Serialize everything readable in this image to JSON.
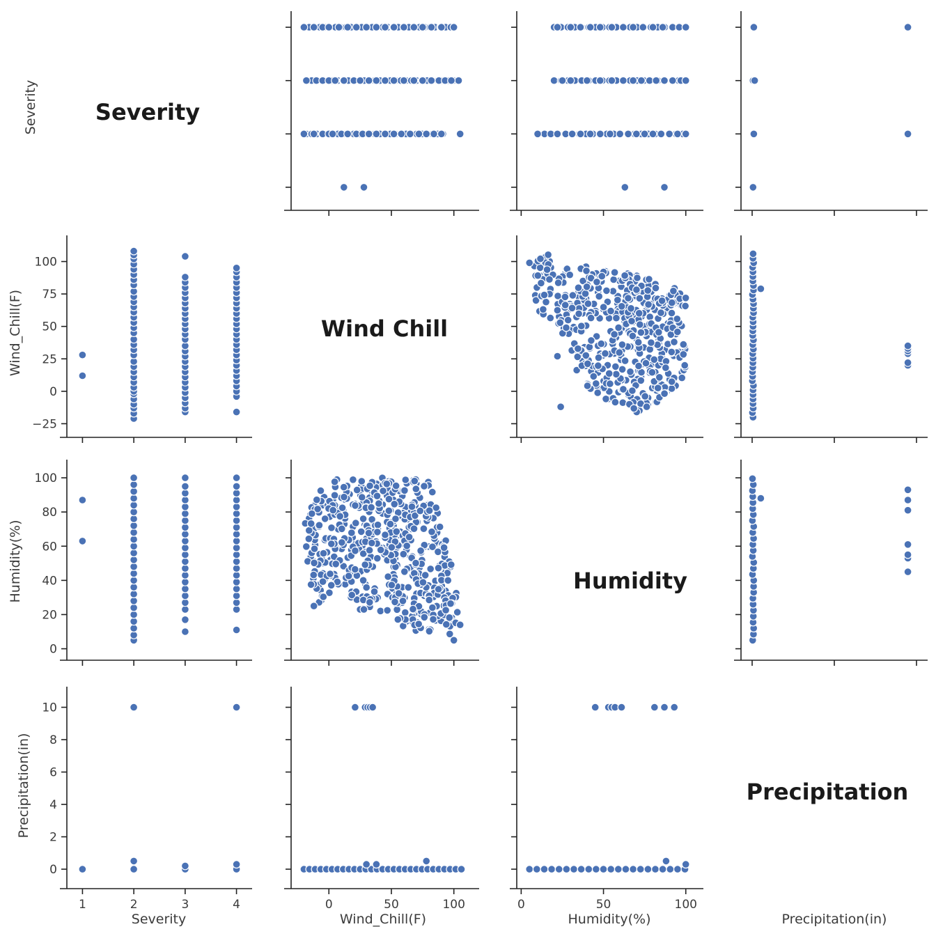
{
  "chart_data": {
    "type": "scatter",
    "variables": [
      "Severity",
      "Wind_Chill(F)",
      "Humidity(%)",
      "Precipitation(in)"
    ],
    "diagonal_titles": [
      "Severity",
      "Wind Chill",
      "Humidity",
      "Precipitation"
    ],
    "axes": {
      "Severity": {
        "range": [
          0.75,
          4.25
        ],
        "ticks": [
          1,
          2,
          3,
          4
        ],
        "tick_labels": [
          "1",
          "2",
          "3",
          "4"
        ]
      },
      "Wind_Chill(F)": {
        "range": [
          -28,
          118
        ],
        "ticks": [
          -25,
          0,
          25,
          50,
          75,
          100
        ],
        "tick_labels": [
          "−25",
          "0",
          "25",
          "50",
          "75",
          "100"
        ],
        "x_tick_labels": [
          "0",
          "50",
          "100"
        ],
        "x_ticks": [
          0,
          50,
          100
        ]
      },
      "Humidity(%)": {
        "range": [
          -1,
          109
        ],
        "ticks": [
          0,
          20,
          40,
          60,
          80,
          100
        ],
        "tick_labels": [
          "0",
          "20",
          "40",
          "60",
          "80",
          "100"
        ],
        "x_tick_labels": [
          "0",
          "50",
          "100"
        ],
        "x_ticks": [
          0,
          50,
          100
        ]
      },
      "Precipitation(in)": {
        "range": [
          -0.6,
          11.1
        ],
        "ticks": [
          0,
          2,
          4,
          6,
          8,
          10
        ],
        "tick_labels": [
          "0",
          "2",
          "4",
          "6",
          "8",
          "10"
        ],
        "x_tick_labels": [],
        "x_ticks": []
      }
    },
    "xlabels": [
      "Severity",
      "Wind_Chill(F)",
      "Humidity(%)",
      "Precipitation(in)"
    ],
    "ylabels": [
      "Severity",
      "Wind_Chill(F)",
      "Humidity(%)",
      "Precipitation(in)"
    ],
    "severity_vs_windchill": [
      {
        "severity": 1,
        "values": [
          12,
          28
        ]
      },
      {
        "severity": 2,
        "values": [
          -21,
          -17,
          -13,
          -10,
          -6,
          -2,
          0,
          3,
          7,
          11,
          15,
          19,
          23,
          28,
          32,
          36,
          40,
          45,
          49,
          53,
          57,
          61,
          65,
          69,
          73,
          77,
          82,
          86,
          90,
          94,
          98,
          102,
          105,
          108
        ]
      },
      {
        "severity": 3,
        "values": [
          -16,
          -13,
          -9,
          -5,
          -1,
          3,
          7,
          11,
          15,
          19,
          23,
          27,
          31,
          35,
          40,
          44,
          48,
          52,
          56,
          60,
          64,
          68,
          72,
          76,
          80,
          84,
          88,
          104
        ]
      },
      {
        "severity": 4,
        "values": [
          -16,
          -4,
          0,
          4,
          8,
          12,
          16,
          20,
          24,
          28,
          32,
          36,
          40,
          44,
          48,
          52,
          56,
          60,
          64,
          68,
          72,
          76,
          80,
          84,
          88,
          92,
          95
        ]
      }
    ],
    "severity_vs_humidity": [
      {
        "severity": 1,
        "values": [
          63,
          87
        ]
      },
      {
        "severity": 2,
        "values": [
          5,
          8,
          12,
          16,
          20,
          24,
          28,
          32,
          36,
          40,
          44,
          48,
          52,
          56,
          60,
          64,
          68,
          72,
          76,
          80,
          84,
          88,
          92,
          96,
          100
        ]
      },
      {
        "severity": 3,
        "values": [
          10,
          17,
          23,
          27,
          31,
          35,
          39,
          43,
          47,
          51,
          55,
          59,
          63,
          67,
          71,
          75,
          79,
          83,
          87,
          91,
          95,
          100
        ]
      },
      {
        "severity": 4,
        "values": [
          11,
          23,
          27,
          31,
          35,
          39,
          43,
          47,
          51,
          55,
          59,
          63,
          67,
          71,
          75,
          79,
          83,
          87,
          91,
          95,
          100
        ]
      }
    ],
    "severity_vs_precip": [
      {
        "severity": 1,
        "values": [
          0
        ]
      },
      {
        "severity": 2,
        "values": [
          0,
          0.5,
          10
        ]
      },
      {
        "severity": 3,
        "values": [
          0,
          0.2
        ]
      },
      {
        "severity": 4,
        "values": [
          0,
          0.3,
          10
        ]
      }
    ],
    "precip_vs_severity": [
      {
        "precip": 0,
        "severities": [
          1,
          2,
          3,
          4
        ]
      },
      {
        "precip": 0.05,
        "severities": [
          2,
          4
        ]
      },
      {
        "precip": 0.1,
        "severities": [
          3
        ]
      },
      {
        "precip": 10,
        "severities": [
          2,
          4
        ]
      }
    ],
    "severity_strips_windchill": {
      "1": [
        12,
        28
      ],
      "2": [
        -20,
        -12,
        -5,
        0,
        3,
        10,
        15,
        22,
        27,
        32,
        38,
        45,
        52,
        58,
        65,
        72,
        78,
        84,
        90,
        105
      ],
      "3": [
        -18,
        -10,
        -5,
        0,
        5,
        12,
        20,
        25,
        32,
        38,
        45,
        52,
        60,
        68,
        75,
        82,
        88,
        93,
        98
      ],
      "4": [
        -20,
        -12,
        -5,
        0,
        8,
        15,
        22,
        30,
        38,
        45,
        52,
        60,
        68,
        75,
        82,
        90,
        100
      ]
    },
    "severity_strips_humidity": {
      "1": [
        63,
        87
      ],
      "2": [
        10,
        18,
        22,
        27,
        31,
        36,
        42,
        48,
        54,
        60,
        65,
        70,
        75,
        80,
        85,
        90,
        95,
        100
      ],
      "3": [
        25,
        30,
        40,
        48,
        55,
        62,
        68,
        73,
        78,
        82,
        87,
        92,
        97,
        100
      ],
      "4": [
        22,
        30,
        36,
        42,
        48,
        55,
        62,
        68,
        74,
        80,
        86,
        92,
        96,
        100
      ]
    },
    "windchill_vs_precip": [
      {
        "wc": 21,
        "p": 10
      },
      {
        "wc": 29,
        "p": 10
      },
      {
        "wc": 31,
        "p": 10
      },
      {
        "wc": 33,
        "p": 10
      },
      {
        "wc": 35,
        "p": 10
      },
      {
        "wc": 78,
        "p": 0.5
      },
      {
        "wc": 30,
        "p": 0.3
      },
      {
        "wc": 38,
        "p": 0.3
      }
    ],
    "humidity_vs_precip": [
      {
        "h": 45,
        "p": 10
      },
      {
        "h": 53,
        "p": 10
      },
      {
        "h": 55,
        "p": 10
      },
      {
        "h": 57,
        "p": 10
      },
      {
        "h": 61,
        "p": 10
      },
      {
        "h": 81,
        "p": 10
      },
      {
        "h": 87,
        "p": 10
      },
      {
        "h": 93,
        "p": 10
      },
      {
        "h": 88,
        "p": 0.5
      },
      {
        "h": 100,
        "p": 0.3
      }
    ],
    "precip_vs_windchill": [
      {
        "p": 10,
        "wc": 20
      },
      {
        "p": 10,
        "wc": 22
      },
      {
        "p": 10,
        "wc": 29
      },
      {
        "p": 10,
        "wc": 31
      },
      {
        "p": 10,
        "wc": 33
      },
      {
        "p": 10,
        "wc": 35
      },
      {
        "p": 0.5,
        "wc": 79
      }
    ],
    "precip_vs_humidity": [
      {
        "p": 10,
        "h": 45
      },
      {
        "p": 10,
        "h": 53
      },
      {
        "p": 10,
        "h": 55
      },
      {
        "p": 10,
        "h": 61
      },
      {
        "p": 10,
        "h": 81
      },
      {
        "p": 10,
        "h": 87
      },
      {
        "p": 10,
        "h": 93
      },
      {
        "p": 0.5,
        "h": 88
      }
    ],
    "windchill_vs_humidity_region": {
      "description_polygon_wc_h": [
        [
          -20,
          72
        ],
        [
          -10,
          92
        ],
        [
          5,
          100
        ],
        [
          80,
          100
        ],
        [
          85,
          88
        ],
        [
          90,
          72
        ],
        [
          97,
          60
        ],
        [
          100,
          40
        ],
        [
          108,
          13
        ],
        [
          98,
          5
        ],
        [
          80,
          8
        ],
        [
          60,
          12
        ],
        [
          45,
          20
        ],
        [
          25,
          23
        ],
        [
          10,
          35
        ],
        [
          -12,
          25
        ],
        [
          -18,
          55
        ]
      ],
      "outliers": [
        [
          -12,
          25
        ],
        [
          100,
          5
        ],
        [
          105,
          14
        ],
        [
          25,
          23
        ],
        [
          28,
          23
        ]
      ]
    },
    "humidity_vs_windchill_region": {
      "polygon_h_wc": [
        [
          5,
          99
        ],
        [
          12,
          108
        ],
        [
          25,
          100
        ],
        [
          45,
          96
        ],
        [
          60,
          92
        ],
        [
          75,
          88
        ],
        [
          88,
          82
        ],
        [
          100,
          80
        ],
        [
          100,
          5
        ],
        [
          92,
          0
        ],
        [
          80,
          -12
        ],
        [
          72,
          -20
        ],
        [
          60,
          -14
        ],
        [
          50,
          -8
        ],
        [
          40,
          0
        ],
        [
          34,
          10
        ],
        [
          30,
          35
        ],
        [
          20,
          55
        ],
        [
          10,
          60
        ],
        [
          8,
          78
        ]
      ],
      "outliers": [
        [
          24,
          -12
        ],
        [
          5,
          99
        ],
        [
          22,
          27
        ]
      ]
    }
  }
}
